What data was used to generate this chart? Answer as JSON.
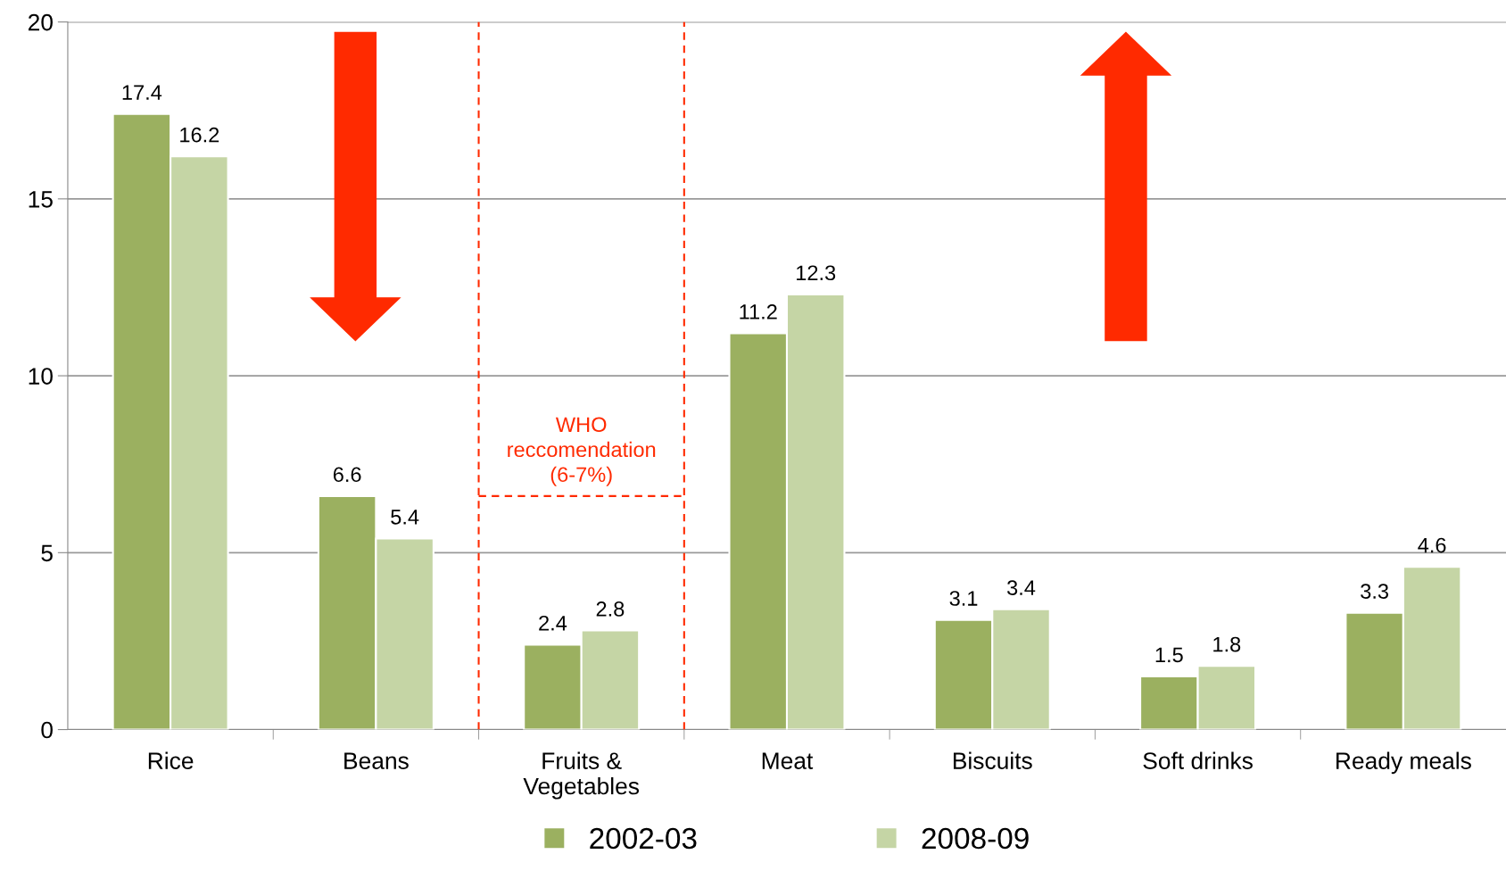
{
  "chart_data": {
    "type": "bar",
    "categories": [
      "Rice",
      "Beans",
      "Fruits &\nVegetables",
      "Meat",
      "Biscuits",
      "Soft drinks",
      "Ready meals"
    ],
    "series": [
      {
        "name": "2002-03",
        "color": "#9bb060",
        "values": [
          17.4,
          6.6,
          2.4,
          11.2,
          3.1,
          1.5,
          3.3
        ]
      },
      {
        "name": "2008-09",
        "color": "#c5d5a5",
        "values": [
          16.2,
          5.4,
          2.8,
          12.3,
          3.4,
          1.8,
          4.6
        ]
      }
    ],
    "ylim": [
      0,
      20
    ],
    "yticks": [
      0,
      5,
      10,
      15,
      20
    ],
    "grid": "y",
    "data_labels": true,
    "legend": "bottom",
    "ref_lines": [
      {
        "axis": "y",
        "value": 6.6,
        "label": "WHO\nreccomendation\n(6-7%)",
        "color": "#ff2a00",
        "line_style": "dashed"
      }
    ]
  }
}
